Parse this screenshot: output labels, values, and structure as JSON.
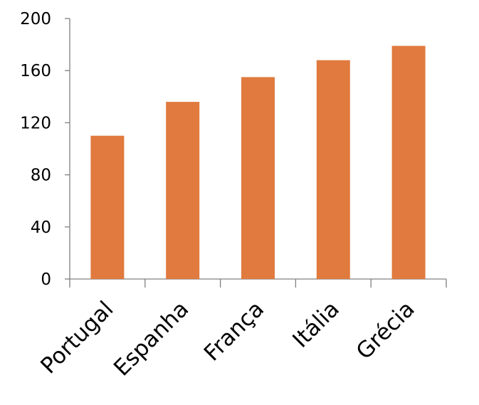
{
  "chart_data": {
    "type": "bar",
    "title": "",
    "xlabel": "",
    "ylabel": "",
    "categories": [
      "Portugal",
      "Espanha",
      "França",
      "Itália",
      "Grécia"
    ],
    "values": [
      110,
      136,
      155,
      168,
      179
    ],
    "ylim": [
      0,
      200
    ],
    "yticks": [
      "0",
      "40",
      "80",
      "120",
      "160",
      "200"
    ],
    "grid": false,
    "legend": "none",
    "bar_color": "#E07A3E",
    "axis_color": "#808080"
  }
}
